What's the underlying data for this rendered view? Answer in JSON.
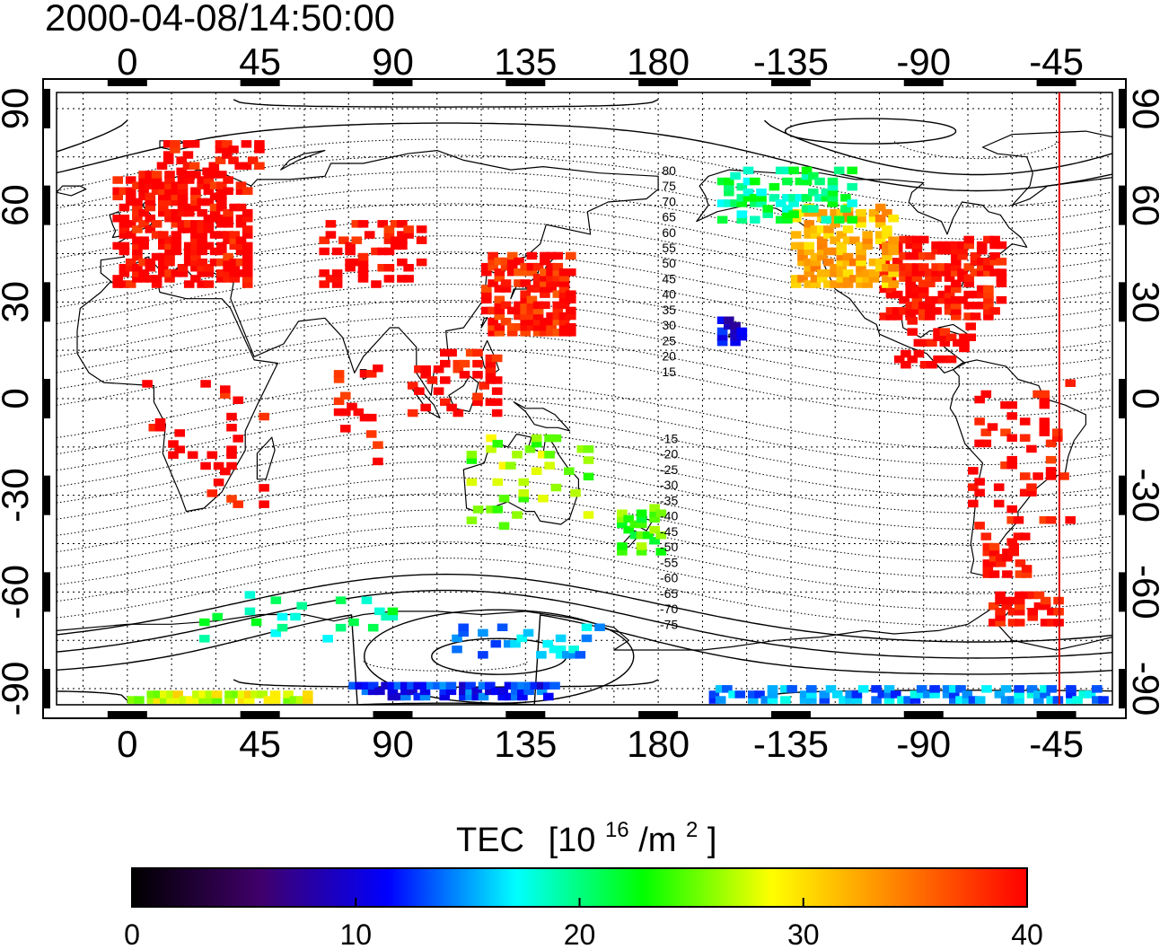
{
  "title": "2000-04-08/14:50:00",
  "map": {
    "projection": "equirectangular",
    "lon_range": [
      -24,
      334
    ],
    "lat_range": [
      -95,
      95
    ],
    "lon_ticks": [
      0,
      45,
      90,
      135,
      180,
      225,
      270,
      315
    ],
    "lon_tick_labels": [
      "0",
      "45",
      "90",
      "135",
      "180",
      "-135",
      "-90",
      "-45"
    ],
    "lat_ticks": [
      90,
      60,
      30,
      0,
      -30,
      -60,
      -90
    ],
    "lat_tick_labels": [
      "90",
      "60",
      "30",
      "0",
      "-30",
      "-60",
      "-90"
    ],
    "grid": "dotted, every 15 degrees",
    "terminator_longitude": -44,
    "terminator_color": "#e00000"
  },
  "contour_labels": {
    "north": [
      "80",
      "75",
      "70",
      "65",
      "60",
      "55",
      "50",
      "45",
      "40",
      "35",
      "30",
      "25",
      "20",
      "15"
    ],
    "south": [
      "-15",
      "-20",
      "-25",
      "-30",
      "-35",
      "-40",
      "-45",
      "-50",
      "-55",
      "-60",
      "-65",
      "-70",
      "-75"
    ]
  },
  "colorbar": {
    "title": "TEC",
    "units_prefix": "[10",
    "units_exp": "16",
    "units_mid": "/m",
    "units_exp2": "2",
    "units_suffix": "]",
    "min": 0,
    "max": 40,
    "ticks": [
      "0",
      "10",
      "20",
      "30",
      "40"
    ],
    "tick_values": [
      0,
      10,
      20,
      30,
      40
    ],
    "colors": [
      "#000000",
      "#40006a",
      "#0000ff",
      "#00ffff",
      "#00ff00",
      "#ffff00",
      "#ff8000",
      "#ff0000"
    ]
  },
  "tec_regions": [
    {
      "name": "europe",
      "lon": [
        -5,
        40
      ],
      "lat": [
        35,
        70
      ],
      "tec": 40,
      "density": 0.55
    },
    {
      "name": "scandinavia-arctic",
      "lon": [
        10,
        45
      ],
      "lat": [
        70,
        80
      ],
      "tec": 40,
      "density": 0.35
    },
    {
      "name": "central-asia",
      "lon": [
        65,
        100
      ],
      "lat": [
        35,
        55
      ],
      "tec": 40,
      "density": 0.25
    },
    {
      "name": "japan",
      "lon": [
        120,
        150
      ],
      "lat": [
        20,
        45
      ],
      "tec": 39,
      "density": 0.6
    },
    {
      "name": "southeast-asia",
      "lon": [
        95,
        125
      ],
      "lat": [
        -5,
        15
      ],
      "tec": 40,
      "density": 0.25
    },
    {
      "name": "indian-ocean",
      "lon": [
        70,
        85
      ],
      "lat": [
        -20,
        10
      ],
      "tec": 40,
      "density": 0.12
    },
    {
      "name": "africa",
      "lon": [
        5,
        45
      ],
      "lat": [
        -35,
        5
      ],
      "tec": 40,
      "density": 0.05
    },
    {
      "name": "north-america",
      "lon": [
        255,
        295
      ],
      "lat": [
        25,
        50
      ],
      "tec": 40,
      "density": 0.55
    },
    {
      "name": "western-north-america",
      "lon": [
        225,
        260
      ],
      "lat": [
        35,
        60
      ],
      "tec": 32,
      "density": 0.5
    },
    {
      "name": "alaska-canada",
      "lon": [
        200,
        245
      ],
      "lat": [
        55,
        72
      ],
      "tec": 20,
      "density": 0.35
    },
    {
      "name": "hawaii",
      "lon": [
        200,
        208
      ],
      "lat": [
        17,
        25
      ],
      "tec": 10,
      "density": 0.5
    },
    {
      "name": "gulf-caribbean",
      "lon": [
        260,
        285
      ],
      "lat": [
        10,
        25
      ],
      "tec": 40,
      "density": 0.3
    },
    {
      "name": "south-america",
      "lon": [
        285,
        320
      ],
      "lat": [
        -45,
        5
      ],
      "tec": 40,
      "density": 0.12
    },
    {
      "name": "patagonia",
      "lon": [
        290,
        305
      ],
      "lat": [
        -55,
        -45
      ],
      "tec": 40,
      "density": 0.5
    },
    {
      "name": "antarctic-peninsula",
      "lon": [
        292,
        315
      ],
      "lat": [
        -70,
        -60
      ],
      "tec": 40,
      "density": 0.5
    },
    {
      "name": "australia",
      "lon": [
        115,
        155
      ],
      "lat": [
        -40,
        -12
      ],
      "tec": 26,
      "density": 0.12
    },
    {
      "name": "new-zealand",
      "lon": [
        166,
        180
      ],
      "lat": [
        -48,
        -34
      ],
      "tec": 24,
      "density": 0.3
    },
    {
      "name": "antarctica-coast-east",
      "lon": [
        20,
        90
      ],
      "lat": [
        -75,
        -60
      ],
      "tec": 20,
      "density": 0.06
    },
    {
      "name": "antarctica-coast-pacific",
      "lon": [
        110,
        160
      ],
      "lat": [
        -80,
        -70
      ],
      "tec": 15,
      "density": 0.15
    },
    {
      "name": "south-pole-band-east",
      "lon": [
        0,
        60
      ],
      "lat": [
        -94,
        -91
      ],
      "tec": 28,
      "density": 0.7
    },
    {
      "name": "south-pole-band-pacific",
      "lon": [
        75,
        145
      ],
      "lat": [
        -93,
        -89
      ],
      "tec": 12,
      "density": 0.6
    },
    {
      "name": "south-pole-band-west",
      "lon": [
        195,
        330
      ],
      "lat": [
        -94,
        -90
      ],
      "tec": 15,
      "density": 0.5
    }
  ]
}
